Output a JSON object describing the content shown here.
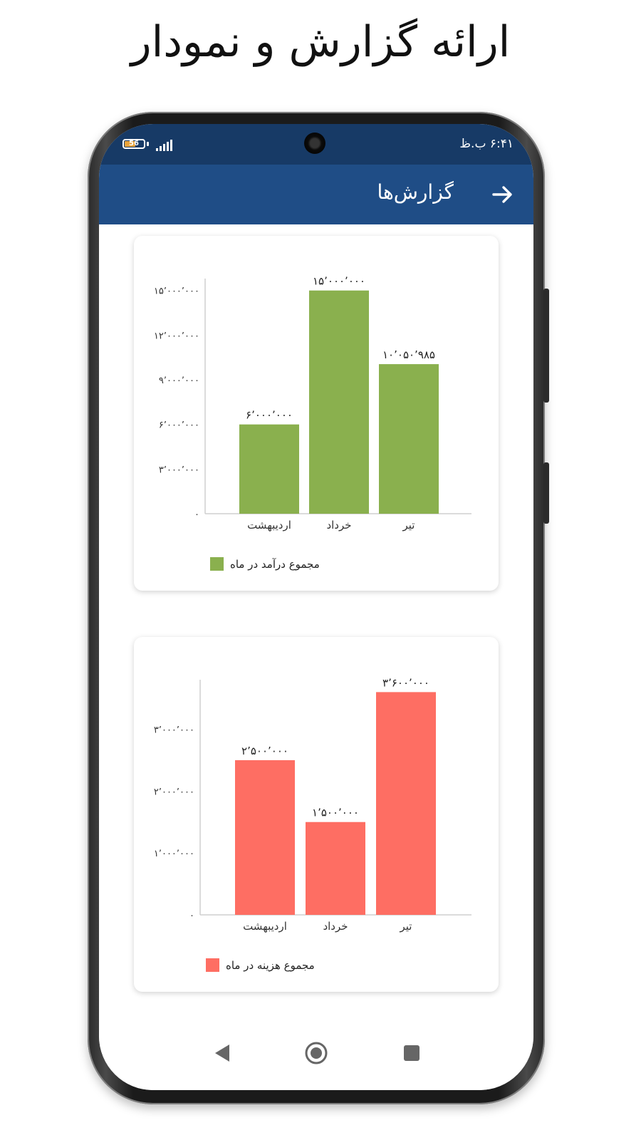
{
  "page_title": "ارائه گزارش و نمودار",
  "status_bar": {
    "time": "۶:۴۱ ب.ظ",
    "battery": "56"
  },
  "app_bar": {
    "title": "گزارش‌ها"
  },
  "colors": {
    "income": "#8ab04e",
    "expense": "#fe6e63",
    "app_bar": "#1f4d86",
    "status_bar": "#173a66"
  },
  "chart_data": [
    {
      "type": "bar",
      "title": "",
      "categories": [
        "اردیبهشت",
        "خرداد",
        "تیر"
      ],
      "series": [
        {
          "name": "مجموع درآمد در ماه",
          "values": [
            6000000,
            15000000,
            10050985
          ]
        }
      ],
      "value_labels": [
        "۶٬۰۰۰٬۰۰۰",
        "۱۵٬۰۰۰٬۰۰۰",
        "۱۰٬۰۵۰٬۹۸۵"
      ],
      "yticks": [
        0,
        3000000,
        6000000,
        9000000,
        12000000,
        15000000
      ],
      "ytick_labels": [
        "۰",
        "۳٬۰۰۰٬۰۰۰",
        "۶٬۰۰۰٬۰۰۰",
        "۹٬۰۰۰٬۰۰۰",
        "۱۲٬۰۰۰٬۰۰۰",
        "۱۵٬۰۰۰٬۰۰۰"
      ],
      "ylim": [
        0,
        15800000
      ],
      "grid": false,
      "legend": "bottom-right"
    },
    {
      "type": "bar",
      "title": "",
      "categories": [
        "اردیبهشت",
        "خرداد",
        "تیر"
      ],
      "series": [
        {
          "name": "مجموع هزینه در ماه",
          "values": [
            2500000,
            1500000,
            3600000
          ]
        }
      ],
      "value_labels": [
        "۲٬۵۰۰٬۰۰۰",
        "۱٬۵۰۰٬۰۰۰",
        "۳٬۶۰۰٬۰۰۰"
      ],
      "yticks": [
        0,
        1000000,
        2000000,
        3000000
      ],
      "ytick_labels": [
        "۰",
        "۱٬۰۰۰٬۰۰۰",
        "۲٬۰۰۰٬۰۰۰",
        "۳٬۰۰۰٬۰۰۰"
      ],
      "ylim": [
        0,
        3800000
      ],
      "grid": false,
      "legend": "bottom-right"
    }
  ]
}
